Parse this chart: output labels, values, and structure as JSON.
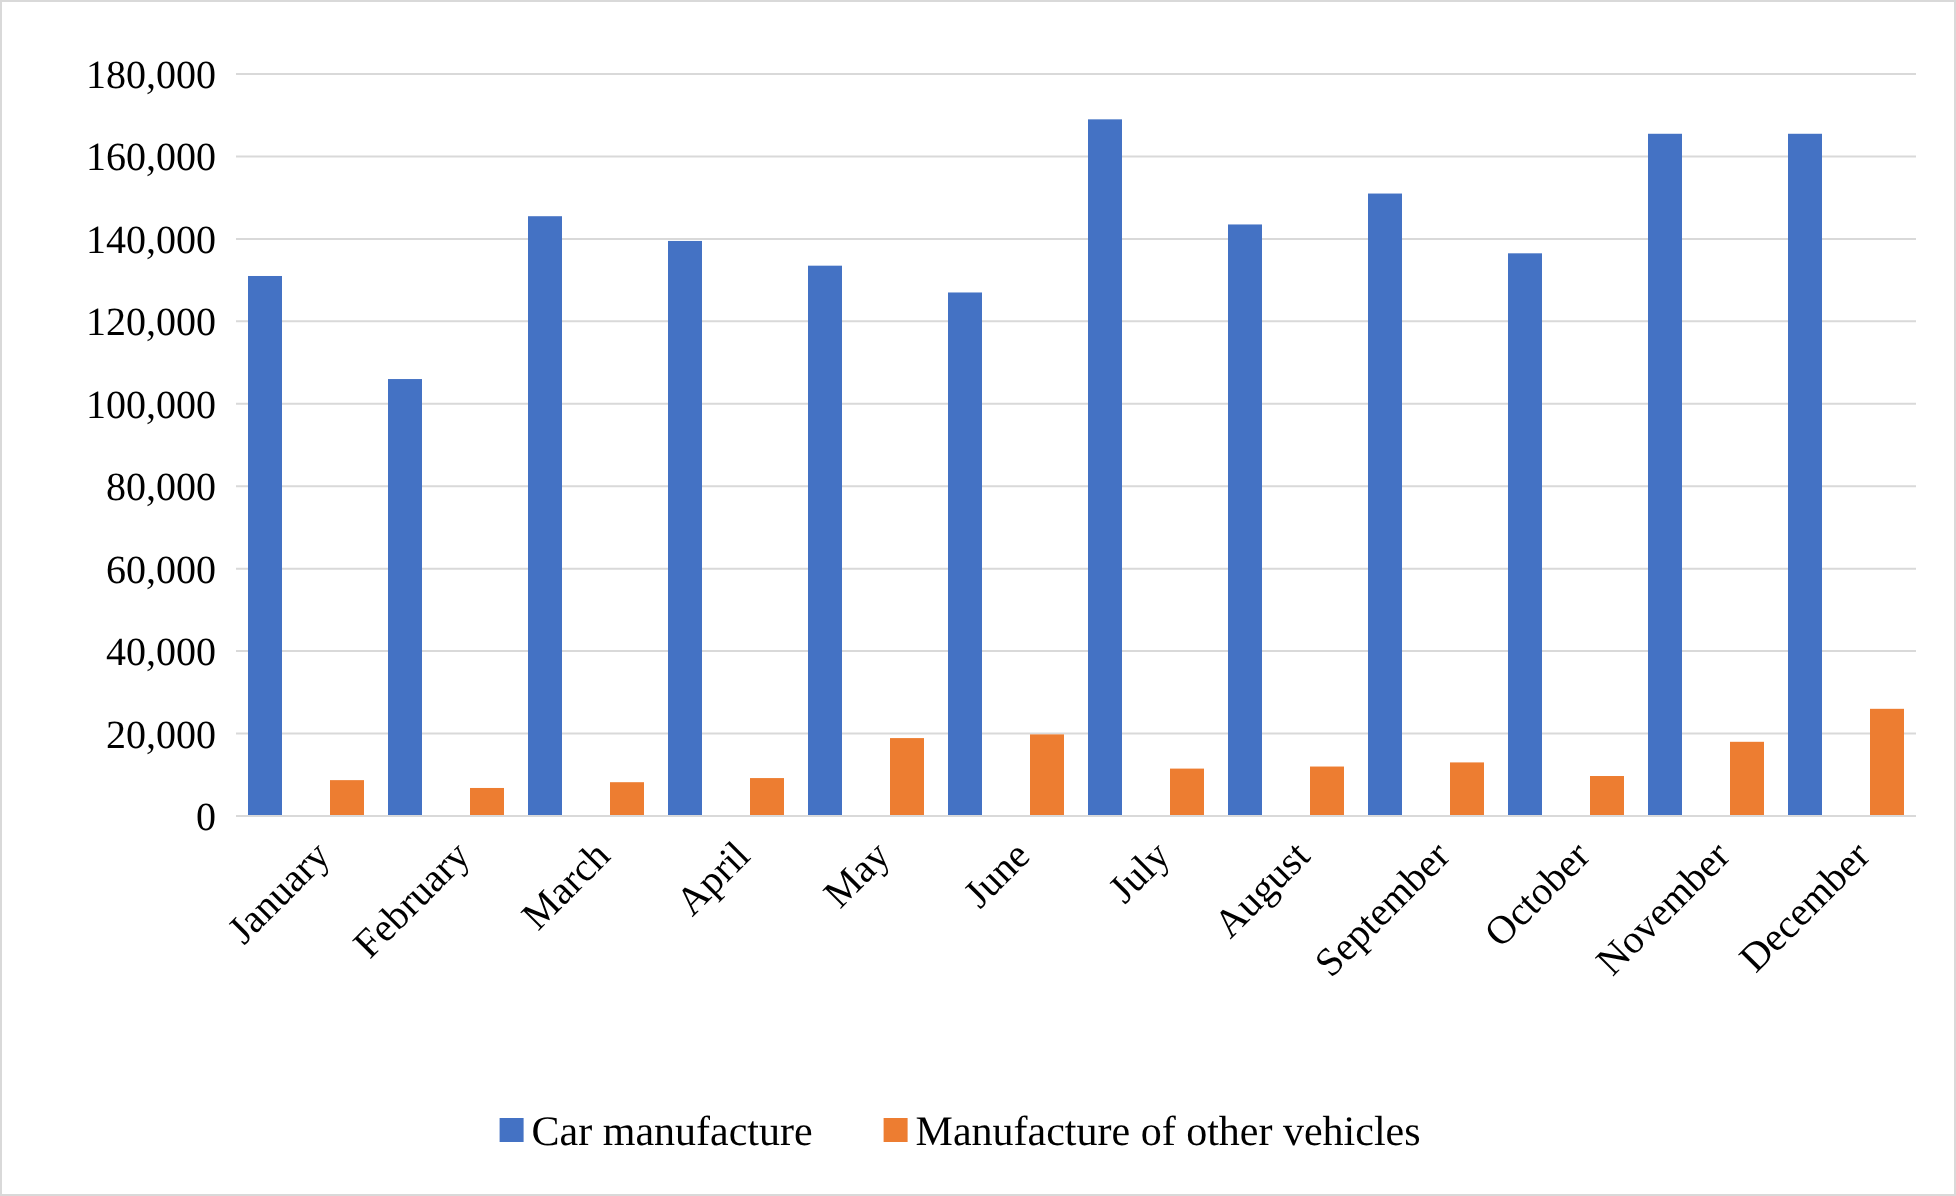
{
  "chart_data": {
    "type": "bar",
    "categories": [
      "January",
      "February",
      "March",
      "April",
      "May",
      "June",
      "July",
      "August",
      "September",
      "October",
      "November",
      "December"
    ],
    "series": [
      {
        "name": "Car manufacture",
        "color": "#4472c4",
        "values": [
          131000,
          106000,
          145500,
          139500,
          133500,
          127000,
          169000,
          143500,
          151000,
          136500,
          165500,
          165500
        ]
      },
      {
        "name": "Manufacture of other vehicles",
        "color": "#ed7d31",
        "values": [
          8700,
          6800,
          8200,
          9200,
          18900,
          19800,
          11500,
          12000,
          13000,
          9700,
          18000,
          26000
        ]
      }
    ],
    "ylim": [
      0,
      180000
    ],
    "yticks": [
      {
        "value": 0,
        "label": "0"
      },
      {
        "value": 20000,
        "label": "20,000"
      },
      {
        "value": 40000,
        "label": "40,000"
      },
      {
        "value": 60000,
        "label": "60,000"
      },
      {
        "value": 80000,
        "label": "80,000"
      },
      {
        "value": 100000,
        "label": "100,000"
      },
      {
        "value": 120000,
        "label": "120,000"
      },
      {
        "value": 140000,
        "label": "140,000"
      },
      {
        "value": 160000,
        "label": "160,000"
      },
      {
        "value": 180000,
        "label": "180,000"
      }
    ],
    "grid": "y",
    "legend": "bottom"
  }
}
